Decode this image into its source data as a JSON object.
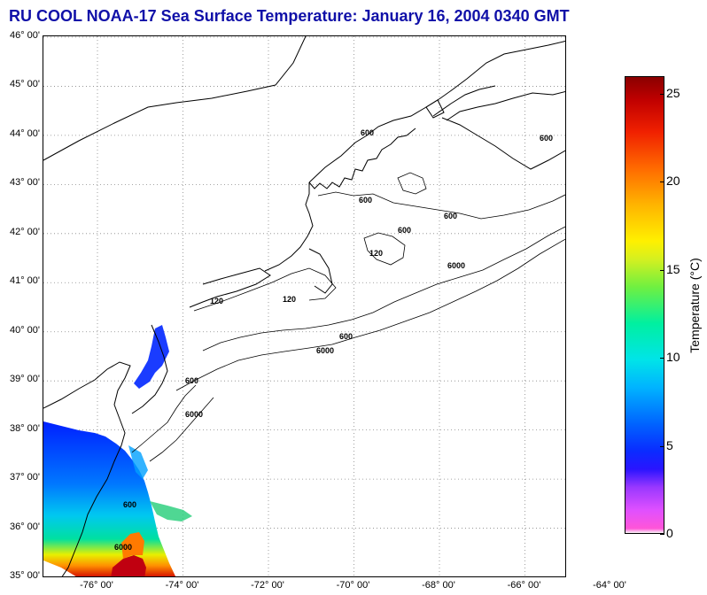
{
  "title": "RU COOL  NOAA-17  Sea Surface Temperature:  January 16, 2004 0340 GMT",
  "map": {
    "latitudes": [
      "46° 00'",
      "45° 00'",
      "44° 00'",
      "43° 00'",
      "42° 00'",
      "41° 00'",
      "40° 00'",
      "39° 00'",
      "38° 00'",
      "37° 00'",
      "36° 00'",
      "35° 00'"
    ],
    "longitudes": [
      "-76° 00'",
      "-74° 00'",
      "-72° 00'",
      "-70° 00'",
      "-68° 00'",
      "-66° 00'",
      "-64° 00'"
    ],
    "depth_contour_labels": [
      "120",
      "600",
      "6000"
    ],
    "grid": "dotted"
  },
  "colorbar": {
    "label": "Temperature (°C)",
    "ticks": [
      "0",
      "5",
      "10",
      "15",
      "20",
      "25"
    ],
    "range": [
      0,
      26
    ]
  },
  "colors": {
    "title": "#1010a8",
    "land_outline": "#000000",
    "warm_core": "#c00000",
    "cold_shelf": "#1030ff"
  }
}
